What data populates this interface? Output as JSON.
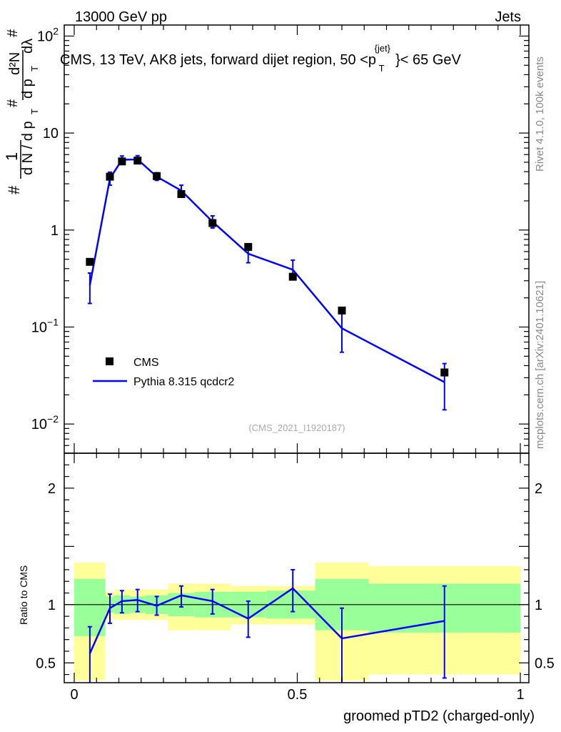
{
  "header": {
    "left": "13000 GeV pp",
    "right": "Jets"
  },
  "title": {
    "main": "CMS, 13 TeV, AK8 jets, forward dijet region, 50 <p",
    "sup": "{jet}",
    "sub": "T",
    "end": "}< 65 GeV"
  },
  "side_labels": {
    "rivet": "Rivet 4.1.0,  100k events",
    "mcplots": "mcplots.cern.ch [arXiv:2401.10621]"
  },
  "analysis_id": "(CMS_2021_I1920187)",
  "ylabel_main": {
    "hash1": "#",
    "one": "1",
    "dn": "d N / d p",
    "dn_sub": "T",
    "hash2": "#",
    "d2n": "d²N",
    "dpt": "d p",
    "dpt_sub": "T",
    "dlambda": "dλ",
    "hash3": "#"
  },
  "ylabel_ratio": "Ratio to CMS",
  "xlabel": "groomed pTD2 (charged-only)",
  "colors": {
    "data": "#000000",
    "mc": "#0000ff",
    "band_inner": "#99ff99",
    "band_outer": "#ffff99"
  },
  "chart_data": {
    "type": "line",
    "xlim": [
      0,
      1
    ],
    "main": {
      "yscale": "log",
      "ylim": [
        0.005,
        130
      ],
      "yticks": [
        {
          "value": 100,
          "base": "10",
          "exp": "2"
        },
        {
          "value": 10,
          "label": "10"
        },
        {
          "value": 1,
          "label": "1"
        },
        {
          "value": 0.1,
          "base": "10",
          "exp": "−1"
        },
        {
          "value": 0.01,
          "base": "10",
          "exp": "−2"
        }
      ]
    },
    "ratio": {
      "ylim": [
        0.33,
        2.3
      ],
      "yticks": [
        {
          "value": 2,
          "label": "2"
        },
        {
          "value": 1,
          "label": "1"
        },
        {
          "value": 0.5,
          "label": "0.5"
        }
      ]
    },
    "xticks": [
      {
        "value": 0,
        "label": "0"
      },
      {
        "value": 0.5,
        "label": "0.5"
      },
      {
        "value": 1,
        "label": "1"
      }
    ],
    "bins": [
      {
        "lo": 0.0,
        "hi": 0.07,
        "x": 0.035
      },
      {
        "lo": 0.07,
        "hi": 0.09,
        "x": 0.08
      },
      {
        "lo": 0.09,
        "hi": 0.125,
        "x": 0.107
      },
      {
        "lo": 0.125,
        "hi": 0.16,
        "x": 0.142
      },
      {
        "lo": 0.16,
        "hi": 0.21,
        "x": 0.185
      },
      {
        "lo": 0.21,
        "hi": 0.27,
        "x": 0.24
      },
      {
        "lo": 0.27,
        "hi": 0.35,
        "x": 0.31
      },
      {
        "lo": 0.35,
        "hi": 0.43,
        "x": 0.39
      },
      {
        "lo": 0.43,
        "hi": 0.54,
        "x": 0.49
      },
      {
        "lo": 0.54,
        "hi": 0.66,
        "x": 0.6
      },
      {
        "lo": 0.66,
        "hi": 1.0,
        "x": 0.83
      }
    ],
    "series": [
      {
        "name": "CMS",
        "style": "markers",
        "values": [
          0.47,
          3.55,
          5.1,
          5.2,
          3.6,
          2.35,
          1.18,
          0.67,
          0.33,
          0.148,
          0.034
        ],
        "ratio_band_inner": [
          [
            0.73,
            1.22
          ],
          [
            0.93,
            1.07
          ],
          [
            0.92,
            1.08
          ],
          [
            0.93,
            1.07
          ],
          [
            0.92,
            1.08
          ],
          [
            0.9,
            1.1
          ],
          [
            0.89,
            1.11
          ],
          [
            0.89,
            1.11
          ],
          [
            0.88,
            1.12
          ],
          [
            0.78,
            1.22
          ],
          [
            0.76,
            1.18
          ]
        ],
        "ratio_band_outer": [
          [
            0.35,
            1.36
          ],
          [
            0.88,
            1.11
          ],
          [
            0.87,
            1.13
          ],
          [
            0.87,
            1.13
          ],
          [
            0.87,
            1.13
          ],
          [
            0.78,
            1.18
          ],
          [
            0.78,
            1.18
          ],
          [
            0.83,
            1.16
          ],
          [
            0.83,
            1.16
          ],
          [
            0.35,
            1.36
          ],
          [
            0.4,
            1.33
          ]
        ]
      },
      {
        "name": "Pythia 8.315 qcdcr2",
        "style": "line",
        "values": [
          0.27,
          3.4,
          5.3,
          5.35,
          3.55,
          2.55,
          1.22,
          0.57,
          0.39,
          0.097,
          0.027
        ],
        "err_lo": [
          0.175,
          2.9,
          4.8,
          4.85,
          3.25,
          2.25,
          1.05,
          0.46,
          0.31,
          0.055,
          0.014
        ],
        "err_hi": [
          0.36,
          3.95,
          5.8,
          5.85,
          3.9,
          2.9,
          1.4,
          0.69,
          0.49,
          0.14,
          0.042
        ],
        "ratio": [
          0.58,
          0.97,
          1.03,
          1.04,
          0.99,
          1.08,
          1.03,
          0.88,
          1.14,
          0.71,
          0.86
        ],
        "ratio_lo": [
          0.33,
          0.84,
          0.93,
          0.94,
          0.91,
          0.98,
          0.92,
          0.72,
          0.94,
          0.33,
          0.37
        ],
        "ratio_hi": [
          0.81,
          1.09,
          1.12,
          1.13,
          1.07,
          1.16,
          1.13,
          1.03,
          1.3,
          0.97,
          1.16
        ]
      }
    ],
    "legend": {
      "position": "bottom-left",
      "entries": [
        "CMS",
        "Pythia 8.315 qcdcr2"
      ]
    }
  }
}
